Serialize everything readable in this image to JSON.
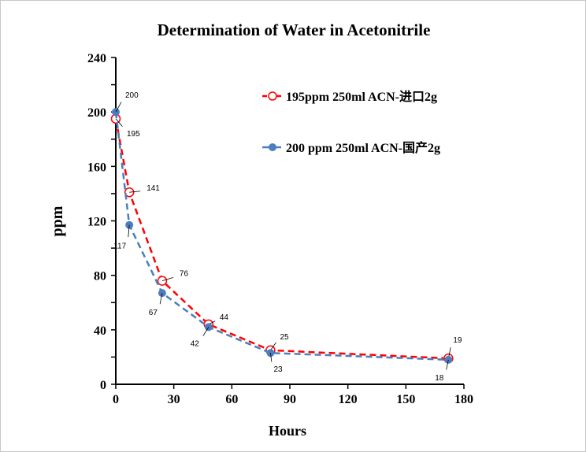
{
  "chart_data": {
    "type": "line",
    "title": "Determination of Water in Acetonitrile",
    "xlabel": "Hours",
    "ylabel": "ppm",
    "xlim": [
      0,
      180
    ],
    "ylim": [
      0,
      240
    ],
    "xticks": [
      0,
      30,
      60,
      90,
      120,
      150,
      180
    ],
    "yticks": [
      0,
      40,
      80,
      120,
      160,
      200,
      240
    ],
    "grid": false,
    "legend_position": "top-right",
    "series": [
      {
        "name": "195ppm  250ml ACN-进口2g",
        "color": "#ff0000",
        "marker": "open-circle",
        "line": "dashed",
        "x": [
          0,
          7,
          24,
          48,
          80,
          172
        ],
        "y": [
          195,
          141,
          76,
          44,
          25,
          19
        ]
      },
      {
        "name": "200 ppm 250ml ACN-国产2g",
        "color": "#4a7ebf",
        "marker": "filled-circle",
        "line": "dashed",
        "x": [
          0,
          7,
          24,
          48,
          80,
          172
        ],
        "y": [
          200,
          117,
          67,
          42,
          23,
          18
        ]
      }
    ]
  }
}
